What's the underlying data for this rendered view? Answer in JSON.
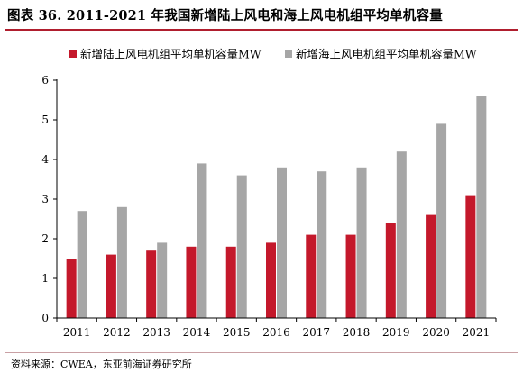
{
  "title": "图表 36. 2011-2021 年我国新增陆上风电和海上风电机组平均单机容量",
  "source": "资料来源：CWEA，东亚前海证券研究所",
  "colors": {
    "onshore": "#c4182b",
    "offshore": "#a6a6a6",
    "title_rule": "#b01e2e"
  },
  "chart_data": {
    "type": "bar",
    "categories": [
      "2011",
      "2012",
      "2013",
      "2014",
      "2015",
      "2016",
      "2017",
      "2018",
      "2019",
      "2020",
      "2021"
    ],
    "series": [
      {
        "name": "新增陆上风电机组平均单机容量MW",
        "values": [
          1.5,
          1.6,
          1.7,
          1.8,
          1.8,
          1.9,
          2.1,
          2.1,
          2.4,
          2.6,
          3.1
        ]
      },
      {
        "name": "新增海上风电机组平均单机容量MW",
        "values": [
          2.7,
          2.8,
          1.9,
          3.9,
          3.6,
          3.8,
          3.7,
          3.8,
          4.2,
          4.9,
          5.6
        ]
      }
    ],
    "yticks": [
      0,
      1,
      2,
      3,
      4,
      5,
      6
    ],
    "ylim": [
      0,
      6
    ],
    "legend_position": "top-left",
    "grid": false
  }
}
